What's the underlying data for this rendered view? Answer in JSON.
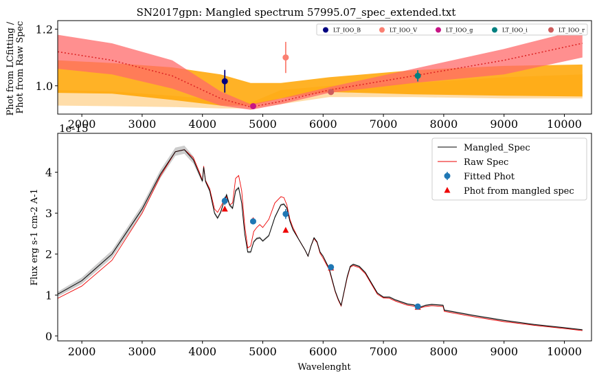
{
  "title": "SN2017gpn: Mangled spectrum 57995.07_spec_extended.txt",
  "chart_data": [
    {
      "type": "line",
      "panel": "top",
      "title": "SN2017gpn: Mangled spectrum 57995.07_spec_extended.txt",
      "xlabel": "",
      "ylabel": "Phot from LCfitting / Phot from Raw Spec",
      "ylabel_lines": [
        "Phot from LCfitting /",
        "Phot from Raw Spec"
      ],
      "xlim": [
        1600,
        10450
      ],
      "ylim": [
        0.9,
        1.23
      ],
      "xticks": [
        "2000",
        "3000",
        "4000",
        "5000",
        "6000",
        "7000",
        "8000",
        "9000",
        "10000"
      ],
      "yticks": [
        "1.0",
        "1.2"
      ],
      "grid": false,
      "legend_position": "top-right",
      "legend": [
        {
          "label": "LT_IOO_B",
          "color": "#000080"
        },
        {
          "label": "LT_IOO_V",
          "color": "#fa8072"
        },
        {
          "label": "LT_IOO_g",
          "color": "#c71585"
        },
        {
          "label": "LT_IOO_i",
          "color": "#008080"
        },
        {
          "label": "LT_IOO_r",
          "color": "#cd5c5c"
        }
      ],
      "points": [
        {
          "x": 4370,
          "y": 1.016,
          "err": 0.04,
          "color": "#000080"
        },
        {
          "x": 5380,
          "y": 1.1,
          "err": 0.055,
          "color": "#fa8072"
        },
        {
          "x": 4840,
          "y": 0.928,
          "err": 0.007,
          "color": "#c71585"
        },
        {
          "x": 7570,
          "y": 1.035,
          "err": 0.02,
          "color": "#008080"
        },
        {
          "x": 6130,
          "y": 0.978,
          "err": 0.01,
          "color": "#cd5c5c"
        }
      ],
      "fit_curve": {
        "color": "#dd2222",
        "x": [
          1600,
          2500,
          3500,
          4300,
          4800,
          5300,
          6100,
          7500,
          9000,
          10300
        ],
        "y": [
          1.12,
          1.09,
          1.035,
          0.955,
          0.925,
          0.945,
          0.985,
          1.035,
          1.09,
          1.15
        ]
      },
      "red_band": {
        "color": "#ff6a6a",
        "x": [
          1600,
          2500,
          3500,
          4300,
          4800,
          5300,
          6100,
          7500,
          9000,
          10300
        ],
        "upper": [
          1.18,
          1.15,
          1.09,
          0.98,
          0.935,
          0.955,
          0.995,
          1.06,
          1.13,
          1.2
        ],
        "lower": [
          1.06,
          1.04,
          0.99,
          0.93,
          0.915,
          0.935,
          0.975,
          1.01,
          1.04,
          1.1
        ]
      },
      "orange_band": {
        "color": "#ffa500",
        "x": [
          1600,
          2500,
          3500,
          4300,
          4800,
          5300,
          6100,
          7500,
          9000,
          10300
        ],
        "upper": [
          1.09,
          1.08,
          1.065,
          1.04,
          1.01,
          1.01,
          1.03,
          1.055,
          1.07,
          1.075
        ],
        "lower": [
          0.975,
          0.972,
          0.95,
          0.93,
          0.93,
          0.955,
          0.978,
          0.97,
          0.965,
          0.962
        ]
      },
      "light_band": {
        "color": "#ffd9a0",
        "x": [
          1600,
          2500,
          3500,
          4300,
          4800,
          5300,
          6100,
          7500,
          9000,
          10300
        ],
        "upper": [
          0.985,
          0.98,
          0.965,
          0.95,
          0.94,
          0.985,
          1.0,
          1.01,
          1.03,
          1.04
        ],
        "lower": [
          0.93,
          0.928,
          0.925,
          0.92,
          0.92,
          0.935,
          0.96,
          0.96,
          0.955,
          0.955
        ]
      }
    },
    {
      "type": "line",
      "panel": "bottom",
      "title": "",
      "xlabel": "Wavelenght",
      "ylabel": "Flux erg s-1 cm-2 A-1",
      "offset_label": "1e-15",
      "xlim": [
        1600,
        10450
      ],
      "ylim": [
        -0.12,
        4.95
      ],
      "xticks": [
        "2000",
        "3000",
        "4000",
        "5000",
        "6000",
        "7000",
        "8000",
        "9000",
        "10000"
      ],
      "yticks": [
        "0",
        "1",
        "2",
        "3",
        "4"
      ],
      "grid": false,
      "legend_position": "top-right",
      "legend": [
        {
          "label": "Mangled_Spec",
          "kind": "line",
          "color": "#000000"
        },
        {
          "label": "Raw Spec",
          "kind": "line",
          "color": "#ee0000"
        },
        {
          "label": "Fitted Phot",
          "kind": "errpoint",
          "color": "#1f77b4"
        },
        {
          "label": "Phot from mangled spec",
          "kind": "triangle",
          "color": "#ee0000"
        }
      ],
      "mangled_spec": {
        "x": [
          1600,
          2000,
          2500,
          3000,
          3300,
          3550,
          3700,
          3850,
          3950,
          4000,
          4020,
          4050,
          4120,
          4200,
          4250,
          4300,
          4350,
          4400,
          4450,
          4500,
          4550,
          4600,
          4650,
          4700,
          4750,
          4800,
          4850,
          4900,
          4950,
          5000,
          5100,
          5200,
          5300,
          5350,
          5400,
          5450,
          5500,
          5600,
          5700,
          5750,
          5800,
          5850,
          5900,
          5950,
          6000,
          6100,
          6200,
          6250,
          6300,
          6350,
          6400,
          6450,
          6500,
          6600,
          6700,
          6800,
          6900,
          7000,
          7100,
          7200,
          7400,
          7500,
          7600,
          7700,
          7800,
          7900,
          7990,
          8010,
          8500,
          9000,
          9500,
          10000,
          10300
        ],
        "y": [
          1.02,
          1.35,
          2.0,
          3.1,
          3.95,
          4.5,
          4.55,
          4.3,
          3.95,
          3.78,
          4.12,
          3.78,
          3.55,
          3.0,
          2.88,
          3.02,
          3.25,
          3.45,
          3.2,
          3.12,
          3.55,
          3.62,
          3.25,
          2.5,
          2.05,
          2.05,
          2.3,
          2.38,
          2.4,
          2.32,
          2.45,
          2.9,
          3.2,
          3.22,
          3.12,
          2.8,
          2.6,
          2.35,
          2.1,
          1.95,
          2.2,
          2.4,
          2.3,
          2.05,
          1.95,
          1.65,
          1.1,
          0.9,
          0.75,
          1.1,
          1.45,
          1.7,
          1.75,
          1.7,
          1.55,
          1.3,
          1.05,
          0.95,
          0.95,
          0.88,
          0.78,
          0.76,
          0.7,
          0.75,
          0.77,
          0.76,
          0.75,
          0.63,
          0.5,
          0.38,
          0.28,
          0.2,
          0.15
        ]
      },
      "raw_spec": {
        "x": [
          1600,
          2000,
          2500,
          3000,
          3300,
          3550,
          3700,
          3850,
          3950,
          4000,
          4020,
          4050,
          4120,
          4200,
          4250,
          4300,
          4350,
          4400,
          4450,
          4500,
          4550,
          4600,
          4650,
          4700,
          4750,
          4800,
          4850,
          4900,
          4950,
          5000,
          5100,
          5200,
          5300,
          5350,
          5400,
          5450,
          5500,
          5600,
          5700,
          5750,
          5800,
          5850,
          5900,
          5950,
          6000,
          6100,
          6200,
          6250,
          6300,
          6350,
          6400,
          6450,
          6500,
          6600,
          6700,
          6800,
          6900,
          7000,
          7100,
          7200,
          7400,
          7500,
          7600,
          7700,
          7800,
          7900,
          7990,
          8010,
          8500,
          9000,
          9500,
          10000,
          10300
        ],
        "y": [
          0.92,
          1.22,
          1.85,
          3.0,
          3.9,
          4.5,
          4.55,
          4.35,
          4.0,
          3.8,
          4.15,
          3.8,
          3.6,
          3.1,
          3.02,
          3.15,
          3.3,
          3.4,
          3.2,
          3.25,
          3.85,
          3.92,
          3.55,
          2.7,
          2.15,
          2.2,
          2.55,
          2.65,
          2.72,
          2.65,
          2.85,
          3.25,
          3.4,
          3.38,
          3.2,
          2.85,
          2.65,
          2.35,
          2.1,
          1.95,
          2.2,
          2.38,
          2.28,
          2.02,
          1.9,
          1.62,
          1.08,
          0.88,
          0.73,
          1.08,
          1.42,
          1.68,
          1.72,
          1.67,
          1.52,
          1.27,
          1.02,
          0.93,
          0.92,
          0.85,
          0.75,
          0.73,
          0.68,
          0.72,
          0.74,
          0.73,
          0.72,
          0.6,
          0.47,
          0.35,
          0.26,
          0.18,
          0.13
        ]
      },
      "band_halfwidth": [
        0.06,
        0.08,
        0.09,
        0.1,
        0.1,
        0.1,
        0.1,
        0.09,
        0.06,
        0.05,
        0.05,
        0.05,
        0.04,
        0.04,
        0.04,
        0.04,
        0.04,
        0.04,
        0.04,
        0.04,
        0.04,
        0.04,
        0.04,
        0.03,
        0.03,
        0.03,
        0.03,
        0.03,
        0.03,
        0.03,
        0.03,
        0.03,
        0.03,
        0.03,
        0.03,
        0.03,
        0.03,
        0.02,
        0.02,
        0.02,
        0.02,
        0.02,
        0.02,
        0.02,
        0.02,
        0.02,
        0.02,
        0.02,
        0.02,
        0.02,
        0.02,
        0.02,
        0.02,
        0.02,
        0.02,
        0.02,
        0.02,
        0.02,
        0.02,
        0.02,
        0.02,
        0.02,
        0.02,
        0.02,
        0.02,
        0.02,
        0.02,
        0.02,
        0.02,
        0.02,
        0.02,
        0.02,
        0.02
      ],
      "band_color": "#cccccc",
      "fitted_phot": [
        {
          "x": 4370,
          "y": 3.3,
          "err": 0.1
        },
        {
          "x": 4840,
          "y": 2.8,
          "err": 0.05
        },
        {
          "x": 5380,
          "y": 2.98,
          "err": 0.12
        },
        {
          "x": 6130,
          "y": 1.68,
          "err": 0.04
        },
        {
          "x": 7570,
          "y": 0.72,
          "err": 0.03
        }
      ],
      "mangled_phot": [
        {
          "x": 4370,
          "y": 3.1
        },
        {
          "x": 4840,
          "y": 2.82
        },
        {
          "x": 5380,
          "y": 2.58
        },
        {
          "x": 6130,
          "y": 1.66
        },
        {
          "x": 7570,
          "y": 0.7
        }
      ]
    }
  ]
}
